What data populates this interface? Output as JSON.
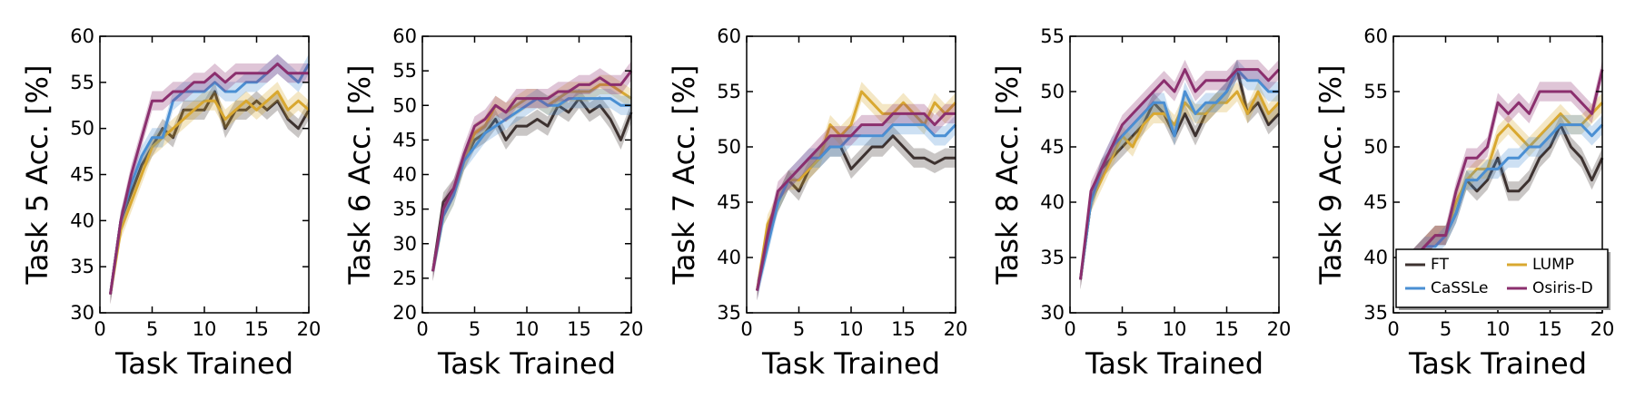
{
  "colors": {
    "FT": "#3d3230",
    "LUMP": "#d9a830",
    "CaSSLe": "#4a8fd3",
    "Osiris-D": "#8b2f6e"
  },
  "legend": {
    "entries": [
      "FT",
      "LUMP",
      "CaSSLe",
      "Osiris-D"
    ],
    "placement": "lower-right of last panel"
  },
  "chart_data": [
    {
      "type": "line",
      "xlabel": "Task Trained",
      "ylabel": "Task 5 Acc. [%]",
      "xlim": [
        0,
        20
      ],
      "ylim": [
        30,
        60
      ],
      "xticks": [
        0,
        5,
        10,
        15,
        20
      ],
      "yticks": [
        30,
        35,
        40,
        45,
        50,
        55,
        60
      ],
      "x": [
        1,
        2,
        3,
        4,
        5,
        6,
        7,
        8,
        9,
        10,
        11,
        12,
        13,
        14,
        15,
        16,
        17,
        18,
        19,
        20
      ],
      "series": [
        {
          "name": "FT",
          "values": [
            32,
            40,
            43,
            46,
            48,
            50,
            49,
            52,
            52,
            52,
            54,
            50,
            52,
            52,
            53,
            52,
            53,
            51,
            50,
            52
          ]
        },
        {
          "name": "LUMP",
          "values": [
            32,
            39,
            42,
            45,
            48,
            49,
            50,
            51,
            52,
            53,
            53,
            51,
            52,
            53,
            52,
            53,
            54,
            52,
            53,
            52
          ]
        },
        {
          "name": "CaSSLe",
          "values": [
            32,
            40,
            44,
            47,
            49,
            49,
            53,
            54,
            54,
            54,
            55,
            54,
            54,
            55,
            55,
            56,
            57,
            56,
            55,
            57
          ]
        },
        {
          "name": "Osiris-D",
          "values": [
            32,
            40,
            45,
            49,
            53,
            53,
            54,
            54,
            55,
            55,
            56,
            55,
            56,
            56,
            56,
            56,
            57,
            56,
            56,
            56
          ]
        }
      ]
    },
    {
      "type": "line",
      "xlabel": "Task Trained",
      "ylabel": "Task 6 Acc. [%]",
      "xlim": [
        0,
        20
      ],
      "ylim": [
        20,
        60
      ],
      "xticks": [
        0,
        5,
        10,
        15,
        20
      ],
      "yticks": [
        20,
        25,
        30,
        35,
        40,
        45,
        50,
        55,
        60
      ],
      "x": [
        1,
        2,
        3,
        4,
        5,
        6,
        7,
        8,
        9,
        10,
        11,
        12,
        13,
        14,
        15,
        16,
        17,
        18,
        19,
        20
      ],
      "series": [
        {
          "name": "FT",
          "values": [
            26,
            36,
            38,
            42,
            45,
            46,
            48,
            45,
            47,
            47,
            48,
            47,
            50,
            49,
            51,
            49,
            50,
            48,
            45,
            49
          ]
        },
        {
          "name": "LUMP",
          "values": [
            26,
            34,
            37,
            42,
            46,
            47,
            50,
            49,
            50,
            51,
            51,
            50,
            51,
            52,
            52,
            52,
            53,
            53,
            52,
            51
          ]
        },
        {
          "name": "CaSSLe",
          "values": [
            26,
            34,
            37,
            42,
            44,
            46,
            47,
            48,
            49,
            50,
            51,
            50,
            50,
            51,
            51,
            51,
            51,
            51,
            50,
            50
          ]
        },
        {
          "name": "Osiris-D",
          "values": [
            26,
            35,
            38,
            43,
            47,
            48,
            50,
            49,
            51,
            51,
            51,
            51,
            52,
            52,
            53,
            53,
            54,
            53,
            53,
            55
          ]
        }
      ]
    },
    {
      "type": "line",
      "xlabel": "Task Trained",
      "ylabel": "Task 7 Acc. [%]",
      "xlim": [
        0,
        20
      ],
      "ylim": [
        35,
        60
      ],
      "xticks": [
        0,
        5,
        10,
        15,
        20
      ],
      "yticks": [
        35,
        40,
        45,
        50,
        55,
        60
      ],
      "x": [
        1,
        2,
        3,
        4,
        5,
        6,
        7,
        8,
        9,
        10,
        11,
        12,
        13,
        14,
        15,
        16,
        17,
        18,
        19,
        20
      ],
      "series": [
        {
          "name": "FT",
          "values": [
            37,
            42,
            45,
            47,
            46,
            48,
            49,
            50,
            50,
            48,
            49,
            50,
            50,
            51,
            50,
            49,
            49,
            48.5,
            49,
            49
          ]
        },
        {
          "name": "LUMP",
          "values": [
            37,
            43,
            45,
            47,
            47,
            48,
            49,
            52,
            51,
            52,
            55,
            54,
            53,
            53,
            54,
            53,
            52,
            54,
            53,
            54
          ]
        },
        {
          "name": "CaSSLe",
          "values": [
            37,
            41,
            45,
            47,
            48,
            49,
            49,
            50,
            50,
            51,
            51,
            51,
            51,
            52,
            52,
            52,
            52,
            51,
            51,
            52
          ]
        },
        {
          "name": "Osiris-D",
          "values": [
            37,
            42,
            46,
            47,
            48,
            49,
            50,
            51,
            51,
            51,
            52,
            52,
            52,
            53,
            53,
            53,
            53,
            52,
            53,
            53
          ]
        }
      ]
    },
    {
      "type": "line",
      "xlabel": "Task Trained",
      "ylabel": "Task 8 Acc. [%]",
      "xlim": [
        0,
        20
      ],
      "ylim": [
        30,
        55
      ],
      "xticks": [
        0,
        5,
        10,
        15,
        20
      ],
      "yticks": [
        30,
        35,
        40,
        45,
        50,
        55
      ],
      "x": [
        1,
        2,
        3,
        4,
        5,
        6,
        7,
        8,
        9,
        10,
        11,
        12,
        13,
        14,
        15,
        16,
        17,
        18,
        19,
        20
      ],
      "series": [
        {
          "name": "FT",
          "values": [
            33,
            40,
            43,
            44,
            45,
            46,
            47,
            49,
            48,
            46,
            48,
            46,
            48,
            49,
            50,
            52,
            48,
            49,
            47,
            48
          ]
        },
        {
          "name": "LUMP",
          "values": [
            33,
            40,
            42,
            44,
            46,
            45,
            47,
            48,
            48,
            47,
            49,
            48,
            48,
            49,
            49,
            50,
            48,
            50,
            48,
            49
          ]
        },
        {
          "name": "CaSSLe",
          "values": [
            33,
            40,
            43,
            45,
            46,
            47,
            48,
            49,
            49,
            46,
            50,
            48,
            49,
            49,
            50,
            52,
            51,
            51,
            50,
            50
          ]
        },
        {
          "name": "Osiris-D",
          "values": [
            33,
            41,
            43,
            45,
            47,
            48,
            49,
            50,
            51,
            50,
            52,
            50,
            51,
            51,
            51,
            52,
            52,
            52,
            51,
            52
          ]
        }
      ]
    },
    {
      "type": "line",
      "xlabel": "Task Trained",
      "ylabel": "Task 9 Acc. [%]",
      "xlim": [
        0,
        20
      ],
      "ylim": [
        35,
        60
      ],
      "xticks": [
        0,
        5,
        10,
        15,
        20
      ],
      "yticks": [
        35,
        40,
        45,
        50,
        55,
        60
      ],
      "x": [
        1,
        2,
        3,
        4,
        5,
        6,
        7,
        8,
        9,
        10,
        11,
        12,
        13,
        14,
        15,
        16,
        17,
        18,
        19,
        20
      ],
      "series": [
        {
          "name": "FT",
          "values": [
            39,
            40,
            41,
            42,
            42,
            44,
            47,
            46,
            47,
            49,
            46,
            46,
            47,
            49,
            50,
            52,
            50,
            49,
            47,
            49
          ]
        },
        {
          "name": "LUMP",
          "values": [
            39,
            40,
            41,
            42,
            42,
            45,
            47,
            48,
            48,
            51,
            52,
            51,
            50,
            51,
            52,
            53,
            52,
            52,
            53,
            54
          ]
        },
        {
          "name": "CaSSLe",
          "values": [
            39,
            40,
            41,
            41,
            42,
            44,
            47,
            47,
            48,
            48,
            49,
            49,
            50,
            50,
            51,
            52,
            52,
            52,
            51,
            52
          ]
        },
        {
          "name": "Osiris-D",
          "values": [
            39,
            40,
            41,
            42,
            42,
            46,
            49,
            49,
            50,
            54,
            53,
            54,
            53,
            55,
            55,
            55,
            55,
            54,
            53,
            57
          ]
        }
      ]
    }
  ]
}
